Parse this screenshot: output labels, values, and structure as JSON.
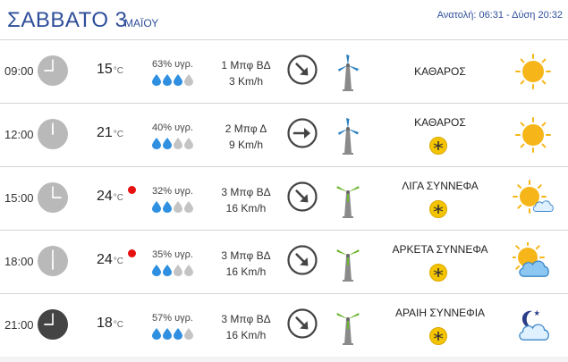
{
  "header": {
    "day": "ΣΑΒΒΑΤΟ 3",
    "month": "ΜΑΪΟΥ",
    "sun": "Ανατολή: 06:31 - Δύση 20:32"
  },
  "unit": "°C",
  "rows": [
    {
      "time": "09:00",
      "clock": "light",
      "temp": "15",
      "hot": false,
      "humidity": "63% υγρ.",
      "drops_filled": 3,
      "wind_force": "1 Μπφ ΒΔ",
      "wind_speed": "3 Km/h",
      "wind_dir": "NW",
      "turbine": "blue",
      "condition": "ΚΑΘΑΡΟΣ",
      "mosquito": false,
      "icon": "sun-icon"
    },
    {
      "time": "12:00",
      "clock": "light",
      "temp": "21",
      "hot": false,
      "humidity": "40% υγρ.",
      "drops_filled": 2,
      "wind_force": "2 Μπφ Δ",
      "wind_speed": "9 Km/h",
      "wind_dir": "W",
      "turbine": "blue",
      "condition": "ΚΑΘΑΡΟΣ",
      "mosquito": true,
      "icon": "sun-icon"
    },
    {
      "time": "15:00",
      "clock": "light",
      "temp": "24",
      "hot": true,
      "humidity": "32% υγρ.",
      "drops_filled": 2,
      "wind_force": "3 Μπφ ΒΔ",
      "wind_speed": "16 Km/h",
      "wind_dir": "NW",
      "turbine": "green",
      "condition": "ΛΙΓΑ ΣΥΝΝΕΦΑ",
      "mosquito": true,
      "icon": "sun-small-cloud-icon"
    },
    {
      "time": "18:00",
      "clock": "light",
      "temp": "24",
      "hot": true,
      "humidity": "35% υγρ.",
      "drops_filled": 2,
      "wind_force": "3 Μπφ ΒΔ",
      "wind_speed": "16 Km/h",
      "wind_dir": "NW",
      "turbine": "green",
      "condition": "ΑΡΚΕΤΑ ΣΥΝΝΕΦΑ",
      "mosquito": true,
      "icon": "sun-cloud-icon"
    },
    {
      "time": "21:00",
      "clock": "dark",
      "temp": "18",
      "hot": false,
      "humidity": "57% υγρ.",
      "drops_filled": 3,
      "wind_force": "3 Μπφ ΒΔ",
      "wind_speed": "16 Km/h",
      "wind_dir": "NW",
      "turbine": "green",
      "condition": "ΑΡΑΙΗ ΣΥΝΝΕΦΙΑ",
      "mosquito": true,
      "icon": "moon-cloud-icon"
    }
  ],
  "colors": {
    "accent": "#2f4f9a",
    "drop_filled": "#2f8fe0",
    "drop_empty": "#c4c4c4",
    "hot": "#e61010",
    "sun": "#f6b619",
    "turbine_blue": "#2a7fc0",
    "turbine_green": "#6cb52d"
  }
}
